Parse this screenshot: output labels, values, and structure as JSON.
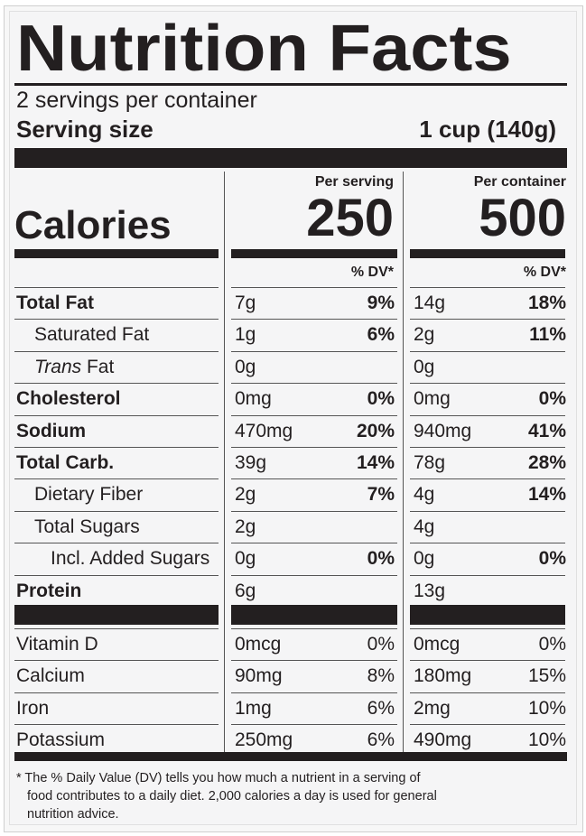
{
  "title": "Nutrition Facts",
  "servings_per_container": "2 servings per container",
  "serving_size": {
    "label": "Serving size",
    "value": "1 cup (140g)"
  },
  "columns": {
    "per_serving_label": "Per serving",
    "per_container_label": "Per container",
    "dv_label": "% DV*"
  },
  "calories": {
    "label": "Calories",
    "per_serving": "250",
    "per_container": "500"
  },
  "nutrients": [
    {
      "label": "Total Fat",
      "serving_amt": "7g",
      "serving_dv": "9%",
      "container_amt": "14g",
      "container_dv": "18%"
    },
    {
      "label": "Saturated Fat",
      "serving_amt": "1g",
      "serving_dv": "6%",
      "container_amt": "2g",
      "container_dv": "11%"
    },
    {
      "label_italic": "Trans",
      "label_rest": " Fat",
      "serving_amt": "0g",
      "serving_dv": "",
      "container_amt": "0g",
      "container_dv": ""
    },
    {
      "label": "Cholesterol",
      "serving_amt": "0mg",
      "serving_dv": "0%",
      "container_amt": "0mg",
      "container_dv": "0%"
    },
    {
      "label": "Sodium",
      "serving_amt": "470mg",
      "serving_dv": "20%",
      "container_amt": "940mg",
      "container_dv": "41%"
    },
    {
      "label": "Total Carb.",
      "serving_amt": "39g",
      "serving_dv": "14%",
      "container_amt": "78g",
      "container_dv": "28%"
    },
    {
      "label": "Dietary Fiber",
      "serving_amt": "2g",
      "serving_dv": "7%",
      "container_amt": "4g",
      "container_dv": "14%"
    },
    {
      "label": "Total Sugars",
      "serving_amt": "2g",
      "serving_dv": "",
      "container_amt": "4g",
      "container_dv": ""
    },
    {
      "label": "Incl. Added Sugars",
      "serving_amt": "0g",
      "serving_dv": "0%",
      "container_amt": "0g",
      "container_dv": "0%"
    },
    {
      "label": "Protein",
      "serving_amt": "6g",
      "serving_dv": "",
      "container_amt": "13g",
      "container_dv": ""
    }
  ],
  "vitamins": [
    {
      "label": "Vitamin D",
      "serving_amt": "0mcg",
      "serving_dv": "0%",
      "container_amt": "0mcg",
      "container_dv": "0%"
    },
    {
      "label": "Calcium",
      "serving_amt": "90mg",
      "serving_dv": "8%",
      "container_amt": "180mg",
      "container_dv": "15%"
    },
    {
      "label": "Iron",
      "serving_amt": "1mg",
      "serving_dv": "6%",
      "container_amt": "2mg",
      "container_dv": "10%"
    },
    {
      "label": "Potassium",
      "serving_amt": "250mg",
      "serving_dv": "6%",
      "container_amt": "490mg",
      "container_dv": "10%"
    }
  ],
  "footnote_lines": [
    "* The % Daily Value (DV) tells you how much a nutrient in a serving of",
    "food contributes to a daily diet. 2,000 calories a day is used for general",
    "nutrition advice."
  ],
  "colors": {
    "ink": "#231f20",
    "background": "#f5f5f6"
  }
}
